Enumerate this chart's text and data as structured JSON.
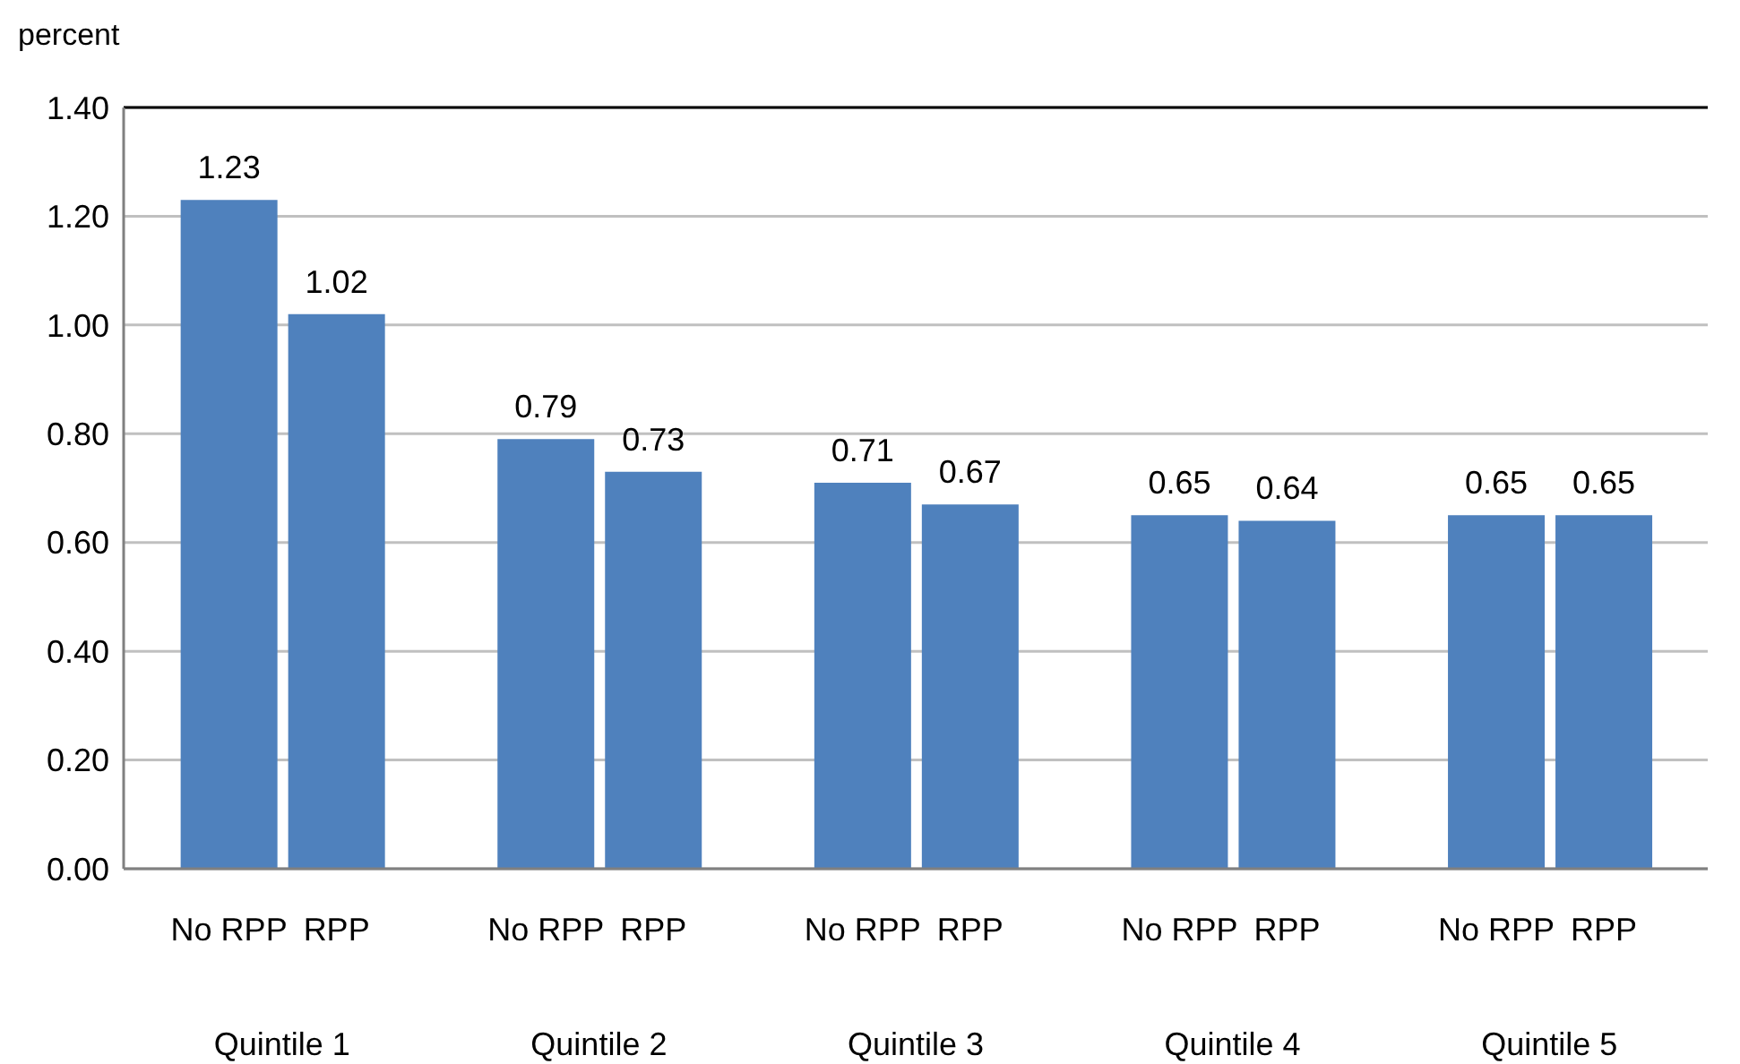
{
  "chart_data": {
    "type": "bar",
    "ylabel": "percent",
    "categories": [
      "Quintile 1",
      "Quintile 2",
      "Quintile 3",
      "Quintile 4",
      "Quintile 5"
    ],
    "series": [
      {
        "name": "No RPP",
        "color": "#4f81bd",
        "values": [
          1.23,
          0.79,
          0.71,
          0.65,
          0.65
        ]
      },
      {
        "name": "RPP",
        "color": "#4f81bd",
        "values": [
          1.02,
          0.73,
          0.67,
          0.64,
          0.65
        ]
      }
    ],
    "ylim": [
      0,
      1.4
    ],
    "yticks": [
      {
        "value": 0,
        "label": "0.00"
      },
      {
        "value": 0.2,
        "label": "0.20"
      },
      {
        "value": 0.4,
        "label": "0.40"
      },
      {
        "value": 0.6,
        "label": "0.60"
      },
      {
        "value": 0.8,
        "label": "0.80"
      },
      {
        "value": 1,
        "label": "1.00"
      },
      {
        "value": 1.2,
        "label": "1.20"
      },
      {
        "value": 1.4,
        "label": "1.40"
      }
    ],
    "grid": "y",
    "data_labels": true
  }
}
